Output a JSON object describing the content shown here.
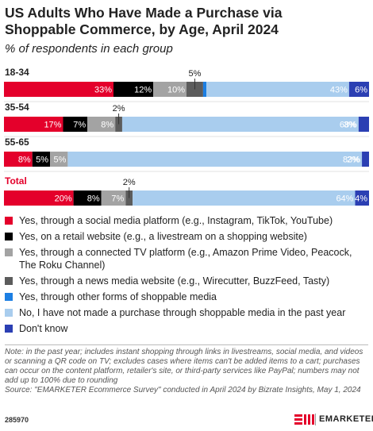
{
  "chart_data": {
    "type": "stacked-bar-h",
    "title": "US Adults Who Have Made a Purchase via Shoppable Commerce, by Age, April 2024",
    "subtitle": "% of respondents in each group",
    "categories": [
      "18-34",
      "35-54",
      "55-65",
      "Total"
    ],
    "series": [
      {
        "name": "Yes, through a social media platform (e.g., Instagram, TikTok, YouTube)",
        "color": "#e4002b",
        "values": [
          33,
          17,
          8,
          20
        ],
        "value_labels": [
          "33%",
          "17%",
          "8%",
          "20%"
        ]
      },
      {
        "name": "Yes, on a retail website (e.g., a livestream on a shopping website)",
        "color": "#000000",
        "values": [
          12,
          7,
          5,
          8
        ],
        "value_labels": [
          "12%",
          "7%",
          "5%",
          "8%"
        ]
      },
      {
        "name": "Yes, through a connected TV platform (e.g., Amazon Prime Video, Peacock, The Roku Channel)",
        "color": "#a3a3a3",
        "values": [
          10,
          8,
          5,
          7
        ],
        "value_labels": [
          "10%",
          "8%",
          "5%",
          "7%"
        ]
      },
      {
        "name": "Yes, through a news media website (e.g., Wirecutter, BuzzFeed, Tasty)",
        "color": "#5c5c5c",
        "values": [
          5,
          2,
          null,
          2
        ],
        "value_labels": [
          "5%",
          "2%",
          null,
          "2%"
        ]
      },
      {
        "name": "Yes, through other forms of shoppable media",
        "color": "#1c7fe3",
        "values": [
          1,
          null,
          null,
          null
        ],
        "value_labels": [
          "1%",
          null,
          null,
          null
        ]
      },
      {
        "name": "No, I have not made a purchase through shoppable media in the past year",
        "color": "#a9cdee",
        "values": [
          43,
          68,
          83,
          64
        ],
        "value_labels": [
          "43%",
          "68%",
          "83%",
          "64%"
        ]
      },
      {
        "name": "Don't know",
        "color": "#2b3fb3",
        "values": [
          6,
          3,
          2,
          4
        ],
        "value_labels": [
          "6%",
          "3%",
          "2%",
          "4%"
        ]
      }
    ]
  },
  "footer": {
    "note": "Note: in the past year; includes instant shopping through links in livestreams, social media, and videos or scanning a QR code on TV; excludes cases where items can't be added items to a cart; purchases can occur on the content platform, retailer's site, or third-party services like PayPal; numbers may not add up to 100% due to rounding",
    "source": "Source: \"EMARKETER Ecommerce Survey\" conducted in April 2024 by Bizrate Insights, May 1, 2024",
    "id": "285970",
    "brand": "EMARKETER"
  }
}
